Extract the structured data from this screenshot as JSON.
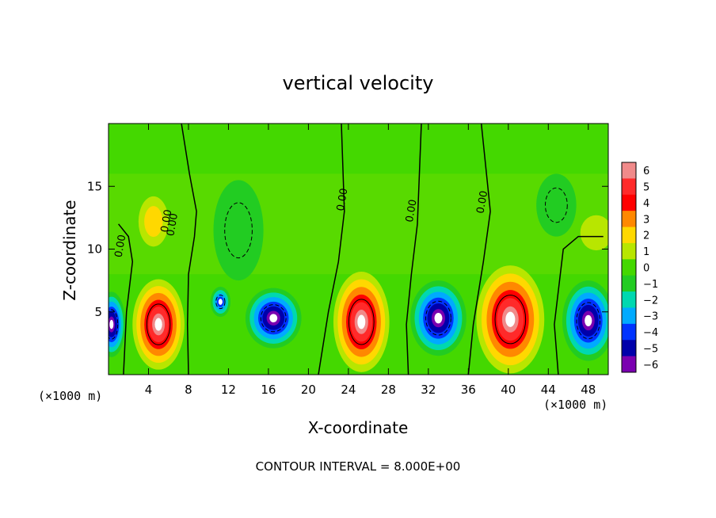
{
  "chart_data": {
    "type": "heatmap",
    "title": "vertical velocity",
    "xlabel": "X-coordinate",
    "ylabel": "Z-coordinate",
    "x_unit": "(×1000 m)",
    "x_unit_right": "(×1000 m)",
    "footer": "CONTOUR INTERVAL = 8.000E+00",
    "xlim": [
      0,
      50
    ],
    "ylim": [
      0,
      20
    ],
    "x_ticks": [
      4,
      8,
      12,
      16,
      20,
      24,
      28,
      32,
      36,
      40,
      44,
      48
    ],
    "x_tick_labels": [
      "4",
      "8",
      "12",
      "16",
      "20",
      "24",
      "28",
      "32",
      "36",
      "40",
      "44",
      "48"
    ],
    "y_ticks": [
      5,
      10,
      15
    ],
    "y_tick_labels": [
      "5",
      "10",
      "15"
    ],
    "contour_labels": [
      "0.00",
      "0.00",
      "0.00",
      "0.00",
      "0.00",
      "0.00"
    ],
    "colorbar": {
      "levels": [
        6,
        5,
        4,
        3,
        2,
        1,
        0,
        -1,
        -2,
        -3,
        -4,
        -5,
        -6
      ],
      "labels": [
        "6",
        "5",
        "4",
        "3",
        "2",
        "1",
        "0",
        "−1",
        "−2",
        "−3",
        "−4",
        "−5",
        "−6"
      ],
      "colors": [
        "#f08a8a",
        "#ff2a2a",
        "#ff0000",
        "#ff8800",
        "#ffd800",
        "#b8e600",
        "#44d800",
        "#22cc22",
        "#00d8b0",
        "#00aaff",
        "#0033ff",
        "#0000aa",
        "#7a00b0"
      ]
    },
    "background_level": 0,
    "features": [
      {
        "kind": "updraft",
        "x": 5.0,
        "z": 4.0,
        "peak": 6,
        "rx": 2.6,
        "rz": 3.6
      },
      {
        "kind": "updraft",
        "x": 25.3,
        "z": 4.2,
        "peak": 6,
        "rx": 2.8,
        "rz": 4.0
      },
      {
        "kind": "updraft",
        "x": 40.2,
        "z": 4.4,
        "peak": 6,
        "rx": 3.4,
        "rz": 4.3
      },
      {
        "kind": "downdraft",
        "x": 16.5,
        "z": 4.5,
        "peak": -6,
        "rx": 2.8,
        "rz": 2.4
      },
      {
        "kind": "downdraft",
        "x": 33.0,
        "z": 4.5,
        "peak": -6,
        "rx": 2.8,
        "rz": 3.0
      },
      {
        "kind": "downdraft",
        "x": 48.0,
        "z": 4.3,
        "peak": -6,
        "rx": 2.6,
        "rz": 3.2
      },
      {
        "kind": "downdraft",
        "x": 0.3,
        "z": 4.0,
        "peak": -6,
        "rx": 1.4,
        "rz": 2.6
      },
      {
        "kind": "downdraft",
        "x": 11.2,
        "z": 5.8,
        "peak": -4,
        "rx": 1.0,
        "rz": 1.2
      },
      {
        "kind": "weak_up",
        "x": 4.5,
        "z": 12.2,
        "peak": 2,
        "rx": 1.5,
        "rz": 2.0
      },
      {
        "kind": "weak_up",
        "x": 48.8,
        "z": 11.3,
        "peak": 1.5,
        "rx": 1.6,
        "rz": 1.4
      },
      {
        "kind": "weak_down",
        "x": 13.0,
        "z": 11.5,
        "peak": -1.6,
        "rx": 2.5,
        "rz": 4.0
      },
      {
        "kind": "weak_down",
        "x": 44.8,
        "z": 13.5,
        "peak": -1.5,
        "rx": 2.0,
        "rz": 2.5
      }
    ]
  }
}
